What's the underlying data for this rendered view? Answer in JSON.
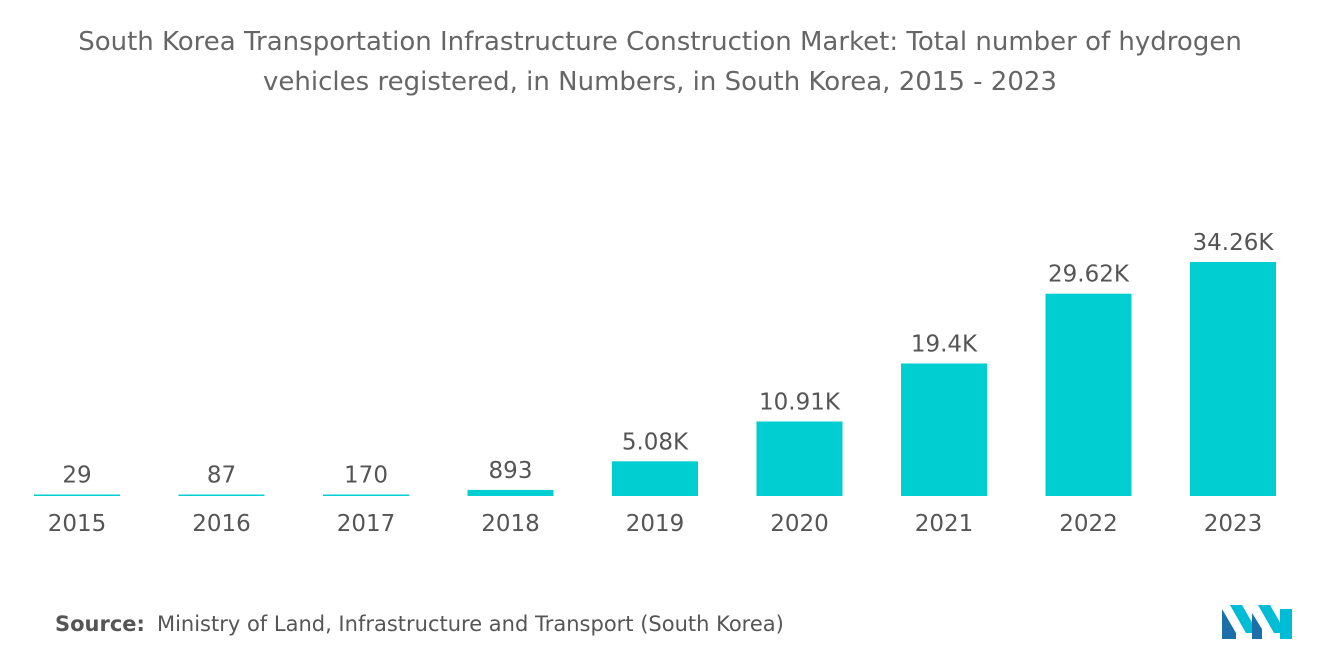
{
  "chart_data": {
    "type": "bar",
    "title": "South Korea Transportation Infrastructure Construction Market: Total number of hydrogen vehicles registered, in Numbers, in South Korea, 2015 - 2023",
    "title_lines": [
      "South Korea Transportation Infrastructure Construction Market: Total number of hydrogen",
      "vehicles registered, in Numbers, in South Korea, 2015 - 2023"
    ],
    "categories": [
      "2015",
      "2016",
      "2017",
      "2018",
      "2019",
      "2020",
      "2021",
      "2022",
      "2023"
    ],
    "values": [
      29,
      87,
      170,
      893,
      5080,
      10910,
      19400,
      29620,
      34260
    ],
    "data_labels": [
      "29",
      "87",
      "170",
      "893",
      "5.08K",
      "10.91K",
      "19.4K",
      "29.62K",
      "34.26K"
    ],
    "xlabel": "",
    "ylabel": "",
    "ylim": [
      0,
      34260
    ],
    "grid": false,
    "legend": "none",
    "bar_color": "#00CED1"
  },
  "source": {
    "label": "Source:",
    "text": "Ministry of Land, Infrastructure and Transport (South Korea)"
  },
  "logo": {
    "icon": "mordor-intelligence-logo-icon",
    "colors": [
      "#1a6fa8",
      "#00bcd4"
    ]
  }
}
